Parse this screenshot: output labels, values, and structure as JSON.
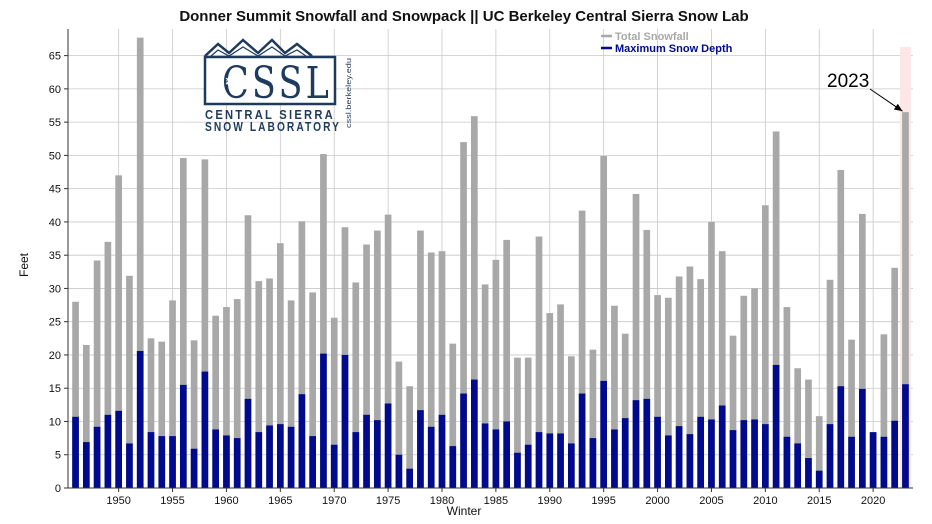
{
  "chart_data": {
    "type": "bar",
    "title": "Donner Summit Snowfall and Snowpack || UC Berkeley Central Sierra Snow Lab",
    "xlabel": "Winter",
    "ylabel": "Feet",
    "ylim": [
      0,
      69
    ],
    "yticks": [
      0,
      5,
      10,
      15,
      20,
      25,
      30,
      35,
      40,
      45,
      50,
      55,
      60,
      65
    ],
    "xticks": [
      1950,
      1955,
      1960,
      1965,
      1970,
      1975,
      1980,
      1985,
      1990,
      1995,
      2000,
      2005,
      2010,
      2015,
      2020
    ],
    "grid": true,
    "legend_placement": "top-right",
    "x": [
      1946,
      1947,
      1948,
      1949,
      1950,
      1951,
      1952,
      1953,
      1954,
      1955,
      1956,
      1957,
      1958,
      1959,
      1960,
      1961,
      1962,
      1963,
      1964,
      1965,
      1966,
      1967,
      1968,
      1969,
      1970,
      1971,
      1972,
      1973,
      1974,
      1975,
      1976,
      1977,
      1978,
      1979,
      1980,
      1981,
      1982,
      1983,
      1984,
      1985,
      1986,
      1987,
      1988,
      1989,
      1990,
      1991,
      1992,
      1993,
      1994,
      1995,
      1996,
      1997,
      1998,
      1999,
      2000,
      2001,
      2002,
      2003,
      2004,
      2005,
      2006,
      2007,
      2008,
      2009,
      2010,
      2011,
      2012,
      2013,
      2014,
      2015,
      2016,
      2017,
      2018,
      2019,
      2020,
      2021,
      2022,
      2023
    ],
    "series": [
      {
        "name": "Total Snowfall",
        "color": "#a8a8a8",
        "values": [
          28.0,
          21.5,
          34.2,
          37.0,
          47.0,
          31.9,
          67.7,
          22.5,
          22.0,
          28.2,
          49.6,
          22.2,
          49.4,
          25.9,
          27.2,
          28.4,
          41.0,
          31.1,
          31.5,
          36.8,
          28.2,
          40.1,
          29.4,
          50.2,
          25.6,
          39.2,
          30.9,
          36.6,
          38.7,
          41.1,
          19.0,
          15.3,
          38.7,
          35.4,
          35.6,
          21.7,
          52.0,
          55.9,
          30.6,
          34.3,
          37.3,
          19.6,
          19.6,
          37.8,
          26.3,
          27.6,
          19.8,
          41.7,
          20.8,
          49.9,
          27.4,
          23.2,
          44.2,
          38.8,
          29.0,
          28.6,
          31.8,
          33.3,
          31.4,
          40.0,
          35.6,
          22.9,
          28.9,
          30.0,
          42.5,
          53.6,
          27.2,
          18.0,
          16.3,
          10.8,
          31.3,
          47.8,
          22.3,
          41.2,
          8.2,
          23.1,
          33.1,
          56.5
        ]
      },
      {
        "name": "Maximum Snow Depth",
        "color": "#000a8c",
        "values": [
          10.7,
          6.9,
          9.2,
          11.0,
          11.6,
          6.7,
          20.6,
          8.4,
          7.8,
          7.8,
          15.5,
          5.9,
          17.5,
          8.8,
          7.9,
          7.5,
          13.4,
          8.4,
          9.4,
          9.6,
          9.2,
          14.1,
          7.8,
          20.2,
          6.5,
          20.0,
          8.4,
          11.0,
          10.2,
          12.7,
          5.0,
          2.9,
          11.7,
          9.2,
          11.0,
          6.3,
          14.2,
          16.3,
          9.7,
          8.8,
          10.0,
          5.3,
          6.5,
          8.4,
          8.2,
          8.2,
          6.7,
          14.2,
          7.5,
          16.1,
          8.8,
          10.5,
          13.2,
          13.4,
          10.7,
          7.9,
          9.3,
          8.1,
          10.7,
          10.3,
          12.4,
          8.7,
          10.2,
          10.3,
          9.6,
          18.5,
          7.7,
          6.7,
          4.5,
          2.6,
          9.6,
          15.3,
          7.7,
          14.9,
          8.4,
          7.7,
          10.1,
          15.6
        ]
      }
    ],
    "annotations": [
      {
        "text": "2023",
        "target_x": 2023
      }
    ],
    "highlight_x": 2023
  },
  "logo": {
    "main": "CSSL",
    "line1": "CENTRAL SIERRA",
    "line2": "SNOW LABORATORY",
    "url": "cssl.berkeley.edu"
  }
}
